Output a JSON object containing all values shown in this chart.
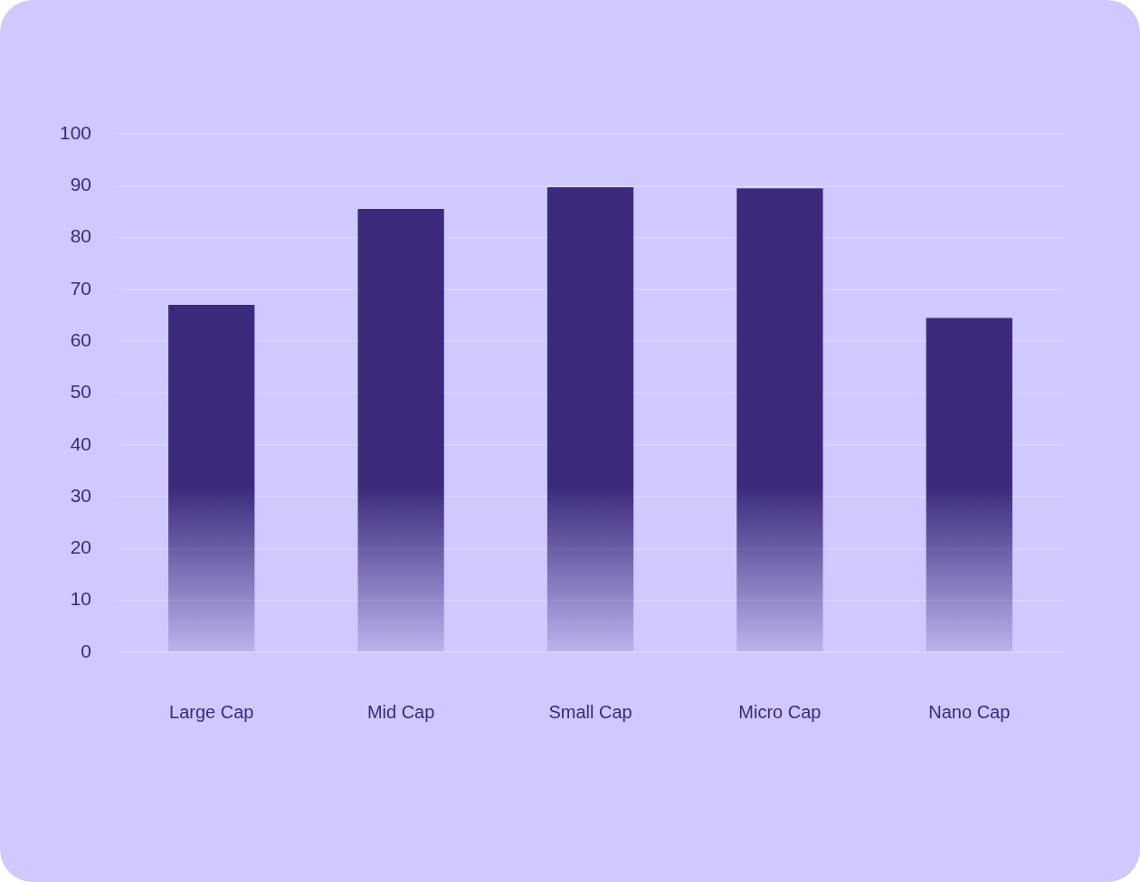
{
  "chart_data": {
    "type": "bar",
    "categories": [
      "Large Cap",
      "Mid Cap",
      "Small Cap",
      "Micro Cap",
      "Nano Cap"
    ],
    "values": [
      67,
      85.5,
      89.7,
      89.5,
      64.5
    ],
    "color": "#3b2a7c",
    "ylim": [
      0,
      100
    ],
    "yticks": [
      0,
      10,
      20,
      30,
      40,
      50,
      60,
      70,
      80,
      90,
      100
    ],
    "grid": "y",
    "legend": false
  }
}
